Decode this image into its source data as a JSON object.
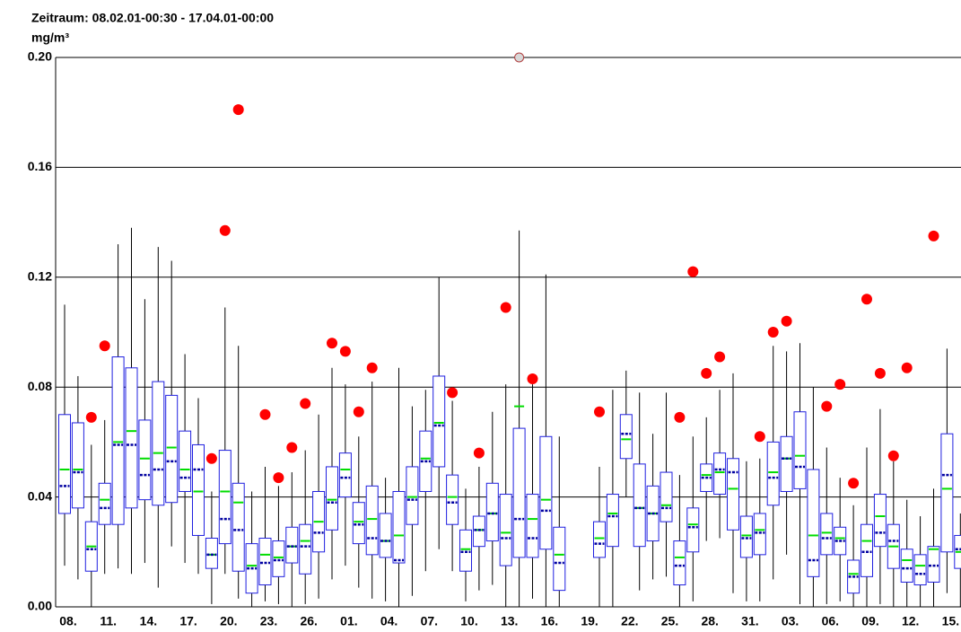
{
  "chart_data": {
    "type": "box",
    "title": "Zeitraum: 08.02.01-00:30 - 17.04.01-00:00",
    "y_label": "mg/m³",
    "ylim": [
      0,
      0.2
    ],
    "yticks": [
      {
        "value": 0,
        "label": "0.00"
      },
      0.04,
      0.08,
      0.12,
      0.16,
      {
        "value": 0.2,
        "label": "0.20"
      }
    ],
    "grid": true,
    "colors": {
      "box": "#2020e0",
      "whisker": "#000000",
      "median": "#0000a0",
      "mean": "#00dd00",
      "outlier": "#ff0000"
    },
    "categories": [
      "08.",
      null,
      null,
      "11.",
      null,
      null,
      "14.",
      null,
      null,
      "17.",
      null,
      null,
      "20.",
      null,
      null,
      "23.",
      null,
      null,
      "26.",
      null,
      null,
      "01.",
      null,
      null,
      "04.",
      null,
      null,
      "07.",
      null,
      null,
      "10.",
      null,
      null,
      "13.",
      null,
      null,
      "16.",
      null,
      null,
      "19.",
      null,
      null,
      "22.",
      null,
      null,
      "25.",
      null,
      null,
      "28.",
      null,
      null,
      "31.",
      null,
      null,
      "03.",
      null,
      null,
      "06.",
      null,
      null,
      "09.",
      null,
      null,
      "12.",
      null,
      null,
      "15.",
      null
    ],
    "whislo": [
      0.015,
      0.01,
      0,
      0.012,
      0.014,
      0.012,
      0.016,
      0.007,
      0.022,
      0.016,
      0.012,
      0.001,
      0.012,
      0.003,
      0,
      0.002,
      0.001,
      0,
      0.001,
      0.003,
      0.01,
      0.015,
      0.007,
      0.003,
      0.002,
      0,
      0.004,
      0.013,
      0.021,
      0.013,
      0.002,
      0.006,
      0.008,
      0,
      0,
      0.003,
      0,
      0,
      null,
      null,
      0,
      0,
      0.04,
      0.006,
      0.01,
      0.011,
      0,
      0.002,
      0.024,
      0.025,
      0.005,
      0.002,
      0.002,
      0.01,
      0.019,
      0.001,
      0,
      0.001,
      0.002,
      0,
      0,
      0.001,
      0,
      0,
      0,
      0,
      0.005,
      0
    ],
    "q1": [
      0.034,
      0.036,
      0.013,
      0.03,
      0.03,
      0.036,
      0.039,
      0.037,
      0.038,
      0.042,
      0.026,
      0.014,
      0.023,
      0.013,
      0.005,
      0.008,
      0.011,
      0.016,
      0.012,
      0.02,
      0.028,
      0.04,
      0.023,
      0.019,
      0.018,
      0.016,
      0.03,
      0.042,
      0.051,
      0.03,
      0.013,
      0.022,
      0.024,
      0.015,
      0.018,
      0.018,
      0.021,
      0.006,
      null,
      null,
      0.018,
      0.022,
      0.054,
      0.022,
      0.024,
      0.031,
      0.008,
      0.02,
      0.042,
      0.041,
      0.028,
      0.018,
      0.019,
      0.037,
      0.042,
      0.043,
      0.011,
      0.019,
      0.019,
      0.005,
      0.011,
      0.022,
      0.014,
      0.009,
      0.008,
      0.009,
      0.02,
      0.014
    ],
    "median": [
      0.044,
      0.049,
      0.021,
      0.036,
      0.059,
      0.059,
      0.048,
      0.05,
      0.053,
      0.047,
      0.05,
      0.019,
      0.032,
      0.028,
      0.014,
      0.016,
      0.017,
      0.022,
      0.022,
      0.027,
      0.038,
      0.047,
      0.03,
      0.025,
      0.024,
      0.017,
      0.039,
      0.053,
      0.066,
      0.038,
      0.02,
      0.028,
      0.034,
      0.025,
      0.032,
      0.025,
      0.035,
      0.016,
      null,
      null,
      0.023,
      0.033,
      0.063,
      0.036,
      0.034,
      0.036,
      0.015,
      0.029,
      0.047,
      0.05,
      0.049,
      0.025,
      0.027,
      0.047,
      0.054,
      0.051,
      0.017,
      0.025,
      0.024,
      0.011,
      0.02,
      0.027,
      0.024,
      0.014,
      0.012,
      0.015,
      0.048,
      0.021
    ],
    "mean": [
      0.05,
      0.05,
      0.022,
      0.039,
      0.06,
      0.064,
      0.054,
      0.056,
      0.058,
      0.05,
      0.042,
      0.019,
      0.042,
      0.038,
      0.015,
      0.019,
      0.018,
      0.022,
      0.024,
      0.031,
      0.039,
      0.05,
      0.031,
      0.032,
      0.024,
      0.026,
      0.04,
      0.054,
      0.067,
      0.04,
      0.021,
      0.028,
      0.034,
      0.027,
      0.073,
      0.032,
      0.039,
      0.019,
      null,
      null,
      0.025,
      0.034,
      0.061,
      0.036,
      0.034,
      0.037,
      0.018,
      0.03,
      0.048,
      0.049,
      0.043,
      0.026,
      0.028,
      0.049,
      0.054,
      0.055,
      0.026,
      0.027,
      0.025,
      0.012,
      0.024,
      0.033,
      0.022,
      0.017,
      0.015,
      0.021,
      0.043,
      0.02
    ],
    "q3": [
      0.07,
      0.067,
      0.031,
      0.045,
      0.091,
      0.087,
      0.068,
      0.082,
      0.077,
      0.064,
      0.059,
      0.025,
      0.057,
      0.045,
      0.023,
      0.025,
      0.024,
      0.029,
      0.03,
      0.042,
      0.051,
      0.056,
      0.038,
      0.044,
      0.034,
      0.042,
      0.051,
      0.064,
      0.084,
      0.048,
      0.028,
      0.033,
      0.045,
      0.041,
      0.065,
      0.041,
      0.062,
      0.029,
      null,
      null,
      0.031,
      0.041,
      0.07,
      0.052,
      0.044,
      0.049,
      0.024,
      0.036,
      0.052,
      0.056,
      0.054,
      0.033,
      0.034,
      0.06,
      0.062,
      0.071,
      0.05,
      0.034,
      0.029,
      0.017,
      0.03,
      0.041,
      0.03,
      0.021,
      0.019,
      0.022,
      0.063,
      0.026
    ],
    "whishi": [
      0.11,
      0.084,
      0.059,
      0.068,
      0.132,
      0.138,
      0.112,
      0.131,
      0.126,
      0.092,
      0.076,
      0.042,
      0.109,
      0.095,
      0.042,
      0.051,
      0.044,
      0.049,
      0.057,
      0.07,
      0.087,
      0.081,
      0.062,
      0.082,
      0.047,
      0.087,
      0.073,
      0.079,
      0.12,
      0.075,
      0.043,
      0.051,
      0.071,
      0.081,
      0.137,
      0.081,
      0.121,
      0.062,
      null,
      null,
      0.051,
      0.079,
      0.086,
      0.078,
      0.063,
      0.078,
      0.048,
      0.062,
      0.069,
      0.079,
      0.085,
      0.053,
      0.054,
      0.095,
      0.093,
      0.096,
      0.08,
      0.058,
      0.047,
      0.037,
      0.058,
      0.072,
      0.053,
      0.039,
      0.033,
      0.043,
      0.094,
      0.034
    ],
    "outliers": [
      null,
      null,
      0.069,
      0.095,
      null,
      null,
      null,
      null,
      null,
      null,
      null,
      0.054,
      0.137,
      0.181,
      null,
      0.07,
      0.047,
      0.058,
      0.074,
      null,
      0.096,
      0.093,
      0.071,
      0.087,
      null,
      null,
      null,
      null,
      null,
      0.078,
      null,
      0.056,
      null,
      0.109,
      0.2,
      0.083,
      null,
      null,
      null,
      null,
      0.071,
      null,
      null,
      null,
      null,
      null,
      0.069,
      0.122,
      0.085,
      0.091,
      null,
      null,
      0.062,
      0.1,
      0.104,
      null,
      null,
      0.073,
      0.081,
      0.045,
      0.112,
      0.085,
      0.055,
      0.087,
      null,
      0.135,
      null,
      null
    ]
  }
}
